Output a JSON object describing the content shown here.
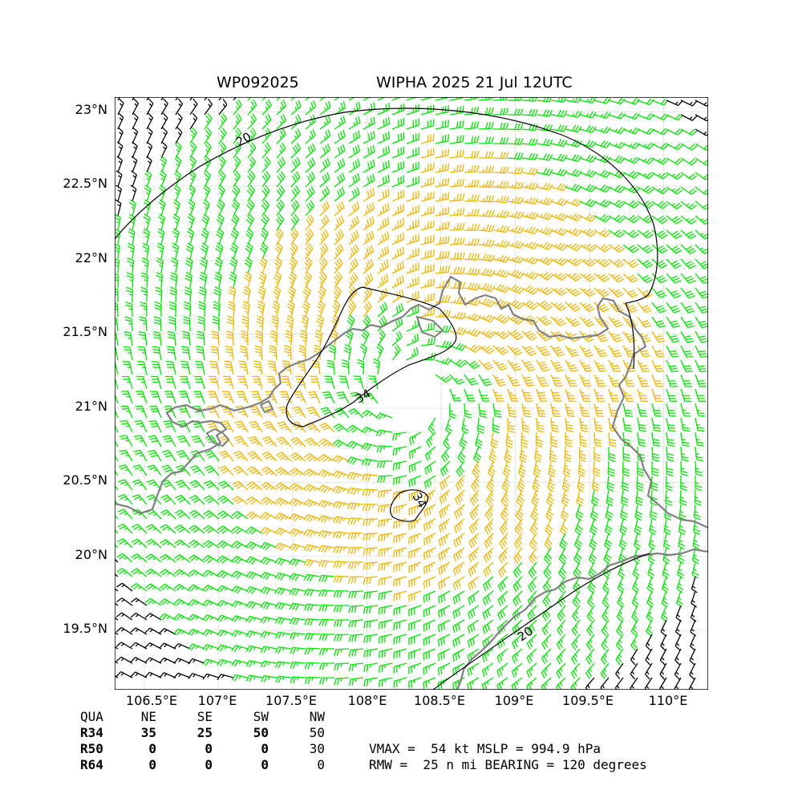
{
  "title": {
    "storm_id": "WP092025",
    "storm_info": "WIPHA 2025 21 Jul 12UTC"
  },
  "axes": {
    "lat_ticks": [
      "23°N",
      "22.5°N",
      "22°N",
      "21.5°N",
      "21°N",
      "20.5°N",
      "20°N",
      "19.5°N"
    ],
    "lon_ticks": [
      "106.5°E",
      "107°E",
      "107.5°E",
      "108°E",
      "108.5°E",
      "109°E",
      "109.5°E",
      "110°E"
    ],
    "lon_range": [
      106.3,
      110.3
    ],
    "lat_range": [
      19.1,
      23.1
    ]
  },
  "contour_labels": [
    "20",
    "34",
    "34",
    "20"
  ],
  "colors": {
    "barb_low": "#000000",
    "barb_mid": "#00e600",
    "barb_high": "#f0b400",
    "barb_max": "#e86400",
    "coast": "#808080",
    "contour": "#000000"
  },
  "wind_radii": {
    "header": [
      "QUA",
      "NE",
      "SE",
      "SW",
      "NW"
    ],
    "rows": [
      {
        "label": "R34",
        "values": [
          "35",
          "25",
          "50",
          "50"
        ]
      },
      {
        "label": "R50",
        "values": [
          "0",
          "0",
          "0",
          "30"
        ]
      },
      {
        "label": "R64",
        "values": [
          "0",
          "0",
          "0",
          "0"
        ]
      }
    ]
  },
  "stats": {
    "line1": "VMAX =  54 kt MSLP = 994.9 hPa",
    "line2": "RMW =  25 n mi BEARING = 120 degrees"
  }
}
